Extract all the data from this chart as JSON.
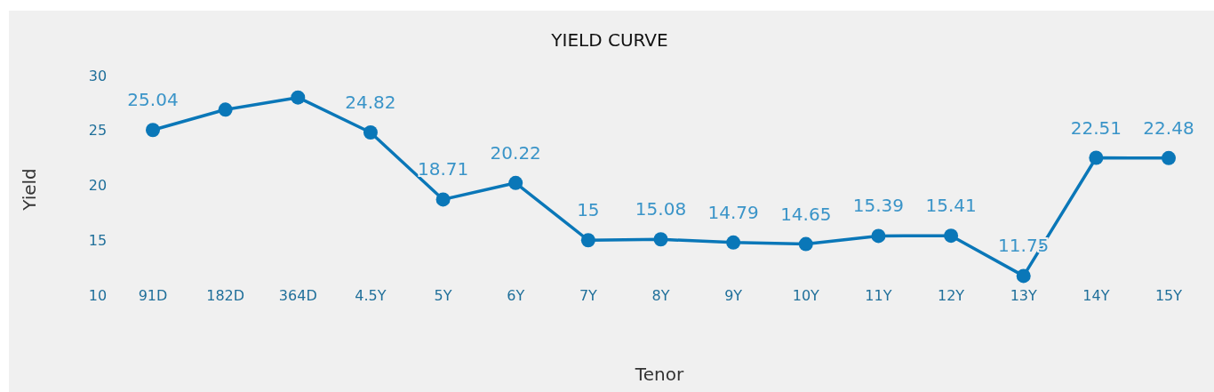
{
  "chart_data": {
    "type": "line",
    "title": "YIELD CURVE",
    "xlabel": "Tenor",
    "ylabel": "Yield",
    "categories": [
      "91D",
      "182D",
      "364D",
      "4.5Y",
      "5Y",
      "6Y",
      "7Y",
      "8Y",
      "9Y",
      "10Y",
      "11Y",
      "12Y",
      "13Y",
      "14Y",
      "15Y"
    ],
    "series": [
      {
        "color": "#0a77b8",
        "values": [
          25.04,
          26.9,
          28.0,
          24.82,
          18.71,
          20.22,
          15,
          15.08,
          14.79,
          14.65,
          15.39,
          15.41,
          11.75,
          22.51,
          22.48
        ],
        "value_labels": [
          "25.04",
          null,
          null,
          "24.82",
          "18.71",
          "20.22",
          "15",
          "15.08",
          "14.79",
          "14.65",
          "15.39",
          "15.41",
          "11.75",
          "22.51",
          "22.48"
        ]
      }
    ],
    "ylim": [
      10,
      30
    ],
    "yticks": [
      10,
      15,
      20,
      25,
      30
    ],
    "grid": false,
    "marker": "circle",
    "line_style": "solid"
  }
}
